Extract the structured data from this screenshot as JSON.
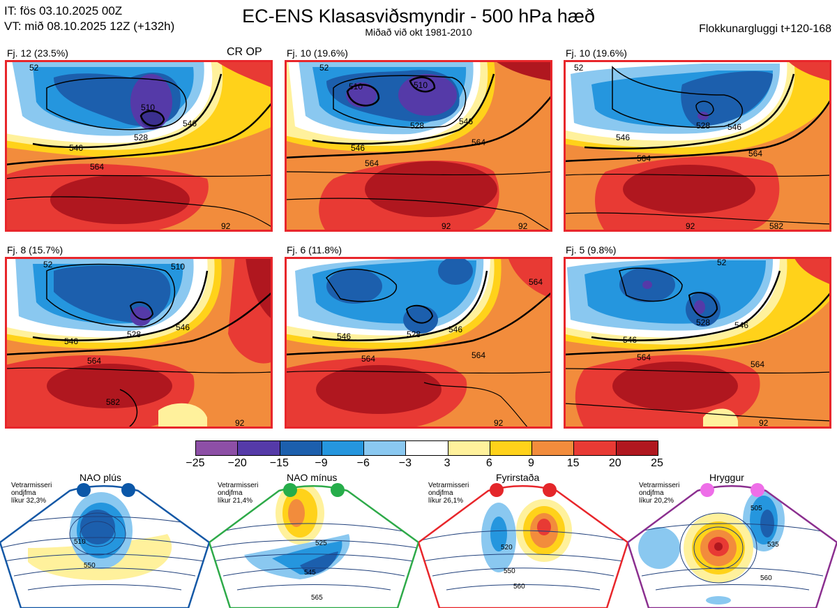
{
  "header": {
    "init_time": "IT: fös 03.10.2025 00Z",
    "valid_time": "VT: mið 08.10.2025 12Z  (+132h)",
    "title": "EC-ENS Klasasviðsmyndir - 500 hPa hæð",
    "subtitle": "Miðað við okt 1981-2010",
    "window": "Flokkunargluggi t+120-168"
  },
  "panels": [
    {
      "label": "Fj. 12 (23.5%)",
      "tag": "CR OP",
      "contours": [
        "510",
        "528",
        "546",
        "546",
        "564"
      ],
      "extra_labels": [
        "92",
        "52"
      ]
    },
    {
      "label": "Fj. 10 (19.6%)",
      "tag": "",
      "contours": [
        "510",
        "510",
        "528",
        "546",
        "546",
        "564",
        "564"
      ],
      "extra_labels": [
        "92",
        "92",
        "52"
      ]
    },
    {
      "label": "Fj. 10 (19.6%)",
      "tag": "",
      "contours": [
        "528",
        "546",
        "546",
        "564",
        "564",
        "582"
      ],
      "extra_labels": [
        "92",
        "52"
      ]
    },
    {
      "label": "Fj. 8 (15.7%)",
      "tag": "",
      "contours": [
        "510",
        "528",
        "546",
        "546",
        "564",
        "582"
      ],
      "extra_labels": [
        "92",
        "52"
      ]
    },
    {
      "label": "Fj. 6 (11.8%)",
      "tag": "",
      "contours": [
        "528",
        "546",
        "546",
        "564",
        "564"
      ],
      "extra_labels": [
        "92",
        "564"
      ]
    },
    {
      "label": "Fj. 5 (9.8%)",
      "tag": "",
      "contours": [
        "528",
        "546",
        "546",
        "564",
        "564"
      ],
      "extra_labels": [
        "92",
        "52"
      ]
    }
  ],
  "colorbar": {
    "ticks": [
      "−25",
      "−20",
      "−15",
      "−9",
      "−6",
      "−3",
      "3",
      "6",
      "9",
      "15",
      "20",
      "25"
    ],
    "colors": [
      "#8d4fa6",
      "#553aa8",
      "#1c5fad",
      "#2596de",
      "#8ac8f0",
      "#ffffff",
      "#fff19c",
      "#ffd21a",
      "#f28c3c",
      "#e83a34",
      "#b0171f"
    ]
  },
  "regimes": [
    {
      "title": "NAO plús",
      "note": [
        "Vetrarmisseri",
        "ondjfma",
        "líkur 32,3%"
      ],
      "color": "#1458a6",
      "dot_color": "#0b57a8",
      "contours": [
        "510",
        "550"
      ]
    },
    {
      "title": "NAO mínus",
      "note": [
        "Vetrarmisseri",
        "ondjfma",
        "líkur 21,4%"
      ],
      "color": "#2eaa49",
      "dot_color": "#26ad4a",
      "contours": [
        "525",
        "545",
        "565"
      ]
    },
    {
      "title": "Fyrirstaða",
      "note": [
        "Vetrarmisseri",
        "ondjfma",
        "líkur 26,1%"
      ],
      "color": "#e8262b",
      "dot_color": "#e4262a",
      "contours": [
        "520",
        "550",
        "560"
      ]
    },
    {
      "title": "Hryggur",
      "note": [
        "Vetrarmisseri",
        "ondjfma",
        "líkur 20,2%"
      ],
      "color": "#8b2f8f",
      "dot_color": "#ee6ee8",
      "contours": [
        "505",
        "535",
        "560"
      ]
    }
  ]
}
